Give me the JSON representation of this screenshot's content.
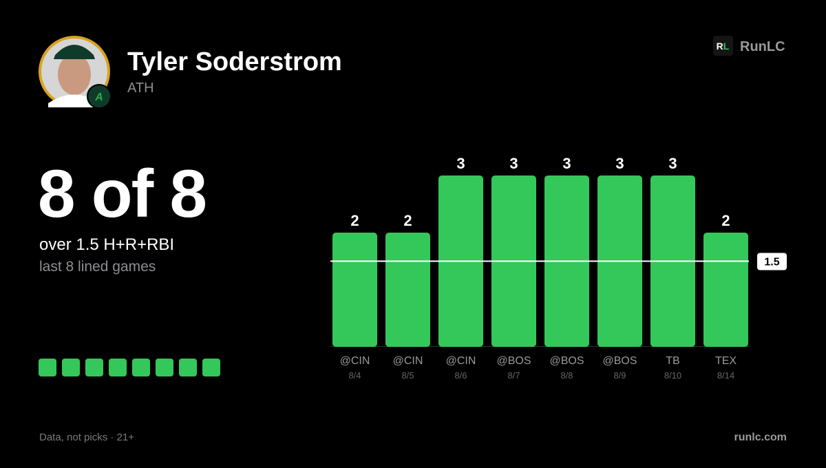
{
  "header": {
    "name": "Tyler Soderstrom",
    "team": "ATH",
    "logo_letters": [
      "R",
      "L"
    ],
    "brand": "RunLC"
  },
  "summary": {
    "headline": "8 of 8",
    "line": "over 1.5 H+R+RBI",
    "note": "last 8 lined games"
  },
  "footer": {
    "disclaimer": "Data, not picks · 21+",
    "site": "runlc.com"
  },
  "chart_data": {
    "type": "bar",
    "categories": [
      "@CIN",
      "@CIN",
      "@CIN",
      "@BOS",
      "@BOS",
      "@BOS",
      "TB",
      "TEX"
    ],
    "dates": [
      "8/4",
      "8/5",
      "8/6",
      "8/7",
      "8/8",
      "8/9",
      "8/10",
      "8/14"
    ],
    "values": [
      2,
      2,
      3,
      3,
      3,
      3,
      3,
      2
    ],
    "color": "#34c759",
    "threshold": 1.5,
    "ylim": [
      0,
      3
    ]
  }
}
